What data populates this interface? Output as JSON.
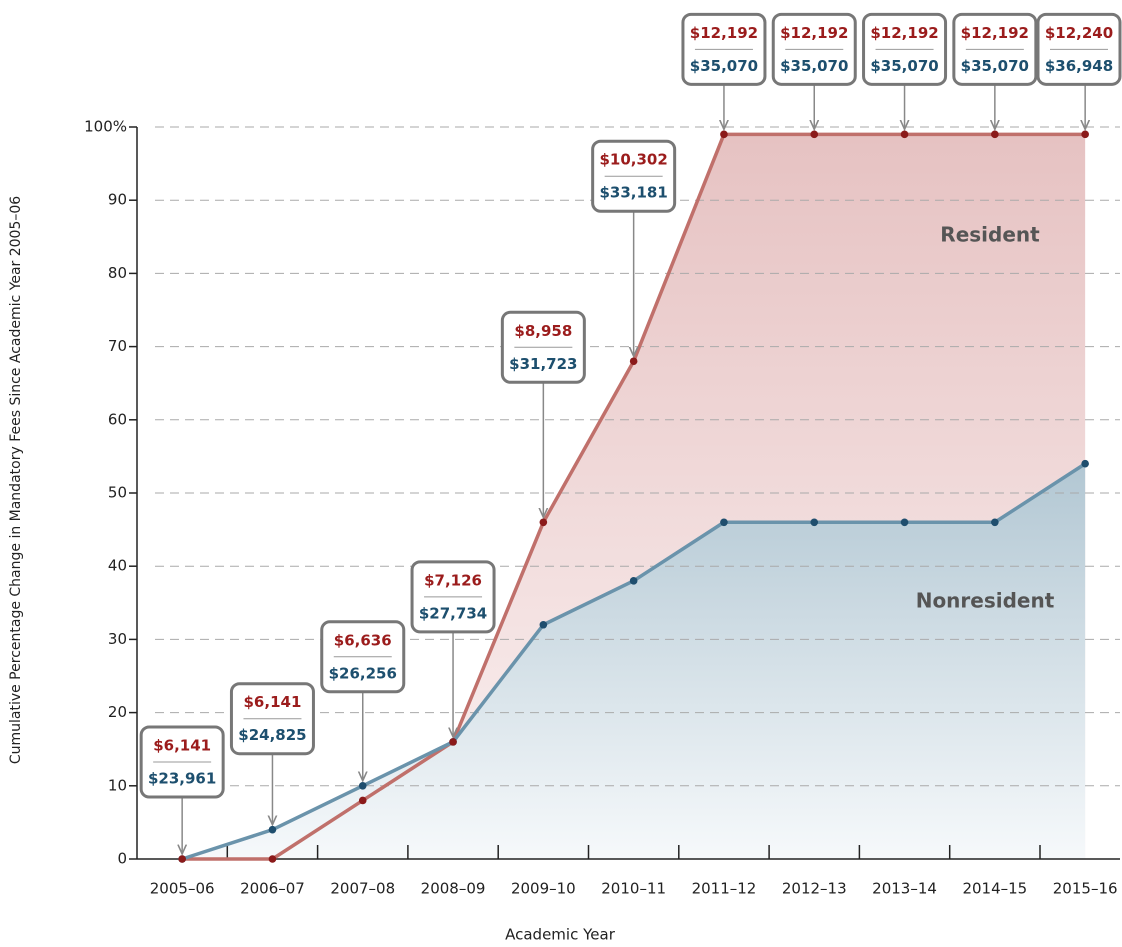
{
  "chart_data": {
    "type": "line",
    "x_label": "Academic Year",
    "y_label": "Cumulative Percentage Change in Mandatory Fees Since Academic Year 2005–06",
    "categories": [
      "2005–06",
      "2006–07",
      "2007–08",
      "2008–09",
      "2009–10",
      "2010–11",
      "2011–12",
      "2012–13",
      "2013–14",
      "2014–15",
      "2015–16"
    ],
    "series": [
      {
        "name": "Resident",
        "color": "#c0706b",
        "marker_color": "#8b1a1a",
        "label_color": "#9b1c1c",
        "values": [
          0,
          0,
          8,
          16,
          46,
          68,
          99,
          99,
          99,
          99,
          99
        ],
        "fee_labels": [
          "$6,141",
          "$6,141",
          "$6,636",
          "$7,126",
          "$8,958",
          "$10,302",
          "$12,192",
          "$12,192",
          "$12,192",
          "$12,192",
          "$12,240"
        ]
      },
      {
        "name": "Nonresident",
        "color": "#6a93ab",
        "marker_color": "#1f4e6e",
        "label_color": "#1d4f6e",
        "values": [
          0,
          4,
          10,
          16,
          32,
          38,
          46,
          46,
          46,
          46,
          54
        ],
        "fee_labels": [
          "$23,961",
          "$24,825",
          "$26,256",
          "$27,734",
          "$31,723",
          "$33,181",
          "$35,070",
          "$35,070",
          "$35,070",
          "$35,070",
          "$36,948"
        ]
      }
    ],
    "ylim": [
      0,
      100
    ],
    "yticks": [
      0,
      10,
      20,
      30,
      40,
      50,
      60,
      70,
      80,
      90,
      {
        "value": 100,
        "label": "100%"
      }
    ],
    "grid": true
  }
}
